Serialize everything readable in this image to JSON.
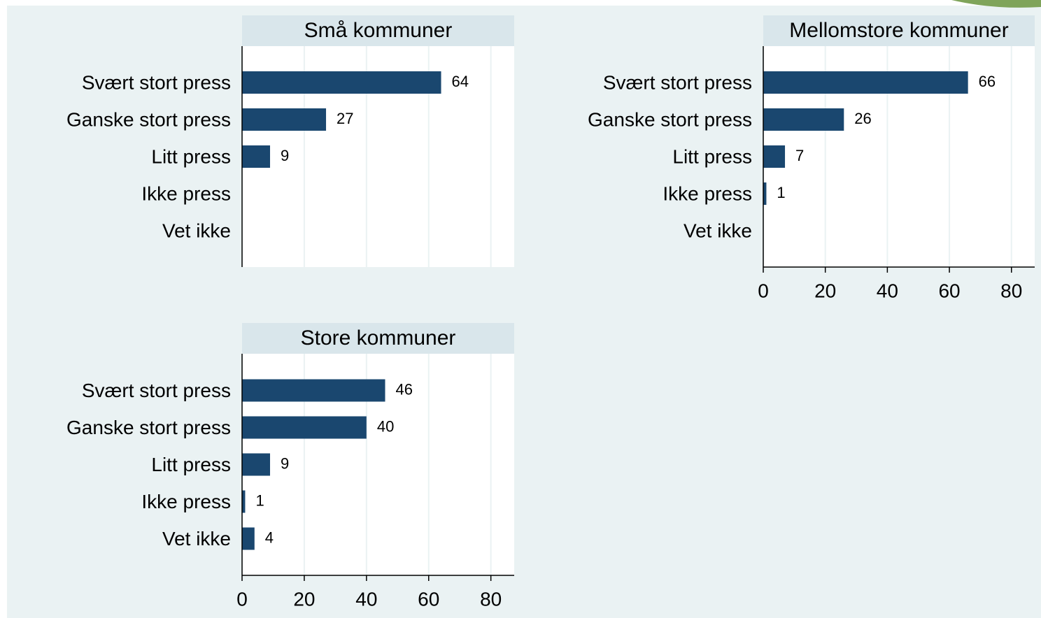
{
  "chart_data": [
    {
      "type": "bar",
      "orientation": "horizontal",
      "title": "Små kommuner",
      "categories": [
        "Svært stort press",
        "Ganske stort press",
        "Litt press",
        "Ikke press",
        "Vet ikke"
      ],
      "values": [
        64,
        27,
        9,
        null,
        null
      ],
      "color": "#1a476f",
      "xlim": [
        0,
        87.5
      ],
      "xticks": [
        0,
        20,
        40,
        60,
        80
      ],
      "xtick_labels": false,
      "grid": true
    },
    {
      "type": "bar",
      "orientation": "horizontal",
      "title": "Mellomstore kommuner",
      "categories": [
        "Svært stort press",
        "Ganske stort press",
        "Litt press",
        "Ikke press",
        "Vet ikke"
      ],
      "values": [
        66,
        26,
        7,
        1,
        null
      ],
      "color": "#1a476f",
      "xlim": [
        0,
        87.5
      ],
      "xticks": [
        0,
        20,
        40,
        60,
        80
      ],
      "xtick_labels": true,
      "grid": true
    },
    {
      "type": "bar",
      "orientation": "horizontal",
      "title": "Store kommuner",
      "categories": [
        "Svært stort press",
        "Ganske stort press",
        "Litt press",
        "Ikke press",
        "Vet ikke"
      ],
      "values": [
        46,
        40,
        9,
        1,
        4
      ],
      "color": "#1a476f",
      "xlim": [
        0,
        87.5
      ],
      "xticks": [
        0,
        20,
        40,
        60,
        80
      ],
      "xtick_labels": true,
      "grid": true
    }
  ]
}
